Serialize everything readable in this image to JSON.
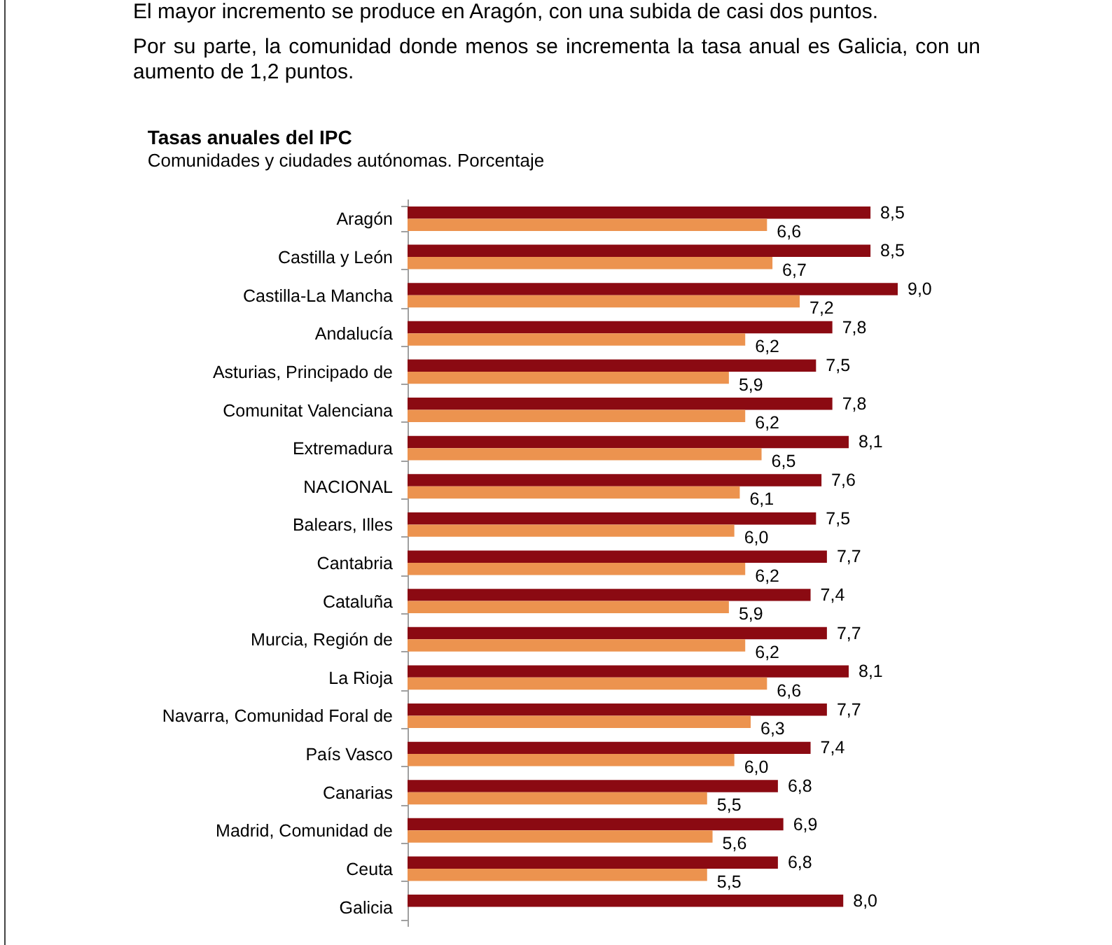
{
  "chart_data": {
    "type": "bar",
    "orientation": "horizontal",
    "title": "Tasas anuales del IPC",
    "subtitle": "Comunidades y ciudades autónomas. Porcentaje",
    "annotations": [
      "El mayor incremento se produce en Aragón, con una subida de casi dos puntos.",
      "Por su parte, la comunidad donde menos se incrementa la tasa anual es Galicia, con un aumento de 1,2 puntos."
    ],
    "categories": [
      "Aragón",
      "Castilla y León",
      "Castilla-La Mancha",
      "Andalucía",
      "Asturias, Principado de",
      "Comunitat Valenciana",
      "Extremadura",
      "NACIONAL",
      "Balears, Illes",
      "Cantabria",
      "Cataluña",
      "Murcia, Región de",
      "La Rioja",
      "Navarra, Comunidad Foral de",
      "País Vasco",
      "Canarias",
      "Madrid, Comunidad de",
      "Ceuta",
      "Galicia"
    ],
    "series": [
      {
        "color": "#8b0a12",
        "values": [
          8.5,
          8.5,
          9.0,
          7.8,
          7.5,
          7.8,
          8.1,
          7.6,
          7.5,
          7.7,
          7.4,
          7.7,
          8.1,
          7.7,
          7.4,
          6.8,
          6.9,
          6.8,
          8.0
        ],
        "value_labels": [
          "8,5",
          "8,5",
          "9,0",
          "7,8",
          "7,5",
          "7,8",
          "8,1",
          "7,6",
          "7,5",
          "7,7",
          "7,4",
          "7,7",
          "8,1",
          "7,7",
          "7,4",
          "6,8",
          "6,9",
          "6,8",
          "8,0"
        ]
      },
      {
        "color": "#ec934f",
        "values": [
          6.6,
          6.7,
          7.2,
          6.2,
          5.9,
          6.2,
          6.5,
          6.1,
          6.0,
          6.2,
          5.9,
          6.2,
          6.6,
          6.3,
          6.0,
          5.5,
          5.6,
          5.5,
          null
        ],
        "value_labels": [
          "6,6",
          "6,7",
          "7,2",
          "6,2",
          "5,9",
          "6,2",
          "6,5",
          "6,1",
          "6,0",
          "6,2",
          "5,9",
          "6,2",
          "6,6",
          "6,3",
          "6,0",
          "5,5",
          "5,6",
          "5,5",
          null
        ]
      }
    ]
  }
}
